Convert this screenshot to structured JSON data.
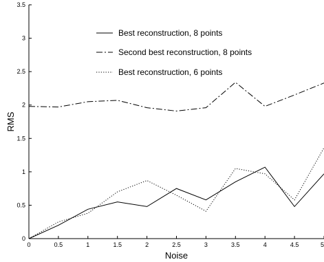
{
  "chart_data": {
    "type": "line",
    "title": "",
    "xlabel": "Noise",
    "ylabel": "RMS",
    "xlim": [
      0,
      5
    ],
    "ylim": [
      0,
      3.5
    ],
    "x_ticks": [
      "0",
      "0.5",
      "1",
      "1.5",
      "2",
      "2.5",
      "3",
      "3.5",
      "4",
      "4.5",
      "5"
    ],
    "y_ticks": [
      "0",
      "0.5",
      "1",
      "1.5",
      "2",
      "2.5",
      "3",
      "3.5"
    ],
    "grid": false,
    "legend_position": "top-center",
    "x": [
      0,
      0.5,
      1,
      1.5,
      2,
      2.5,
      3,
      3.5,
      4,
      4.5,
      5
    ],
    "series": [
      {
        "name": "Best reconstruction, 8 points",
        "style": "solid",
        "color": "#000000",
        "values": [
          0.0,
          0.2,
          0.44,
          0.55,
          0.48,
          0.75,
          0.58,
          0.85,
          1.07,
          0.48,
          0.97
        ]
      },
      {
        "name": "Second best reconstruction, 8 points",
        "style": "dashdot",
        "color": "#000000",
        "values": [
          1.98,
          1.97,
          2.05,
          2.07,
          1.96,
          1.91,
          1.96,
          2.34,
          1.98,
          2.15,
          2.33
        ]
      },
      {
        "name": "Best reconstruction, 6 points",
        "style": "dotted",
        "color": "#000000",
        "values": [
          0.0,
          0.25,
          0.38,
          0.7,
          0.87,
          0.65,
          0.41,
          1.05,
          0.97,
          0.58,
          1.36
        ]
      }
    ]
  }
}
